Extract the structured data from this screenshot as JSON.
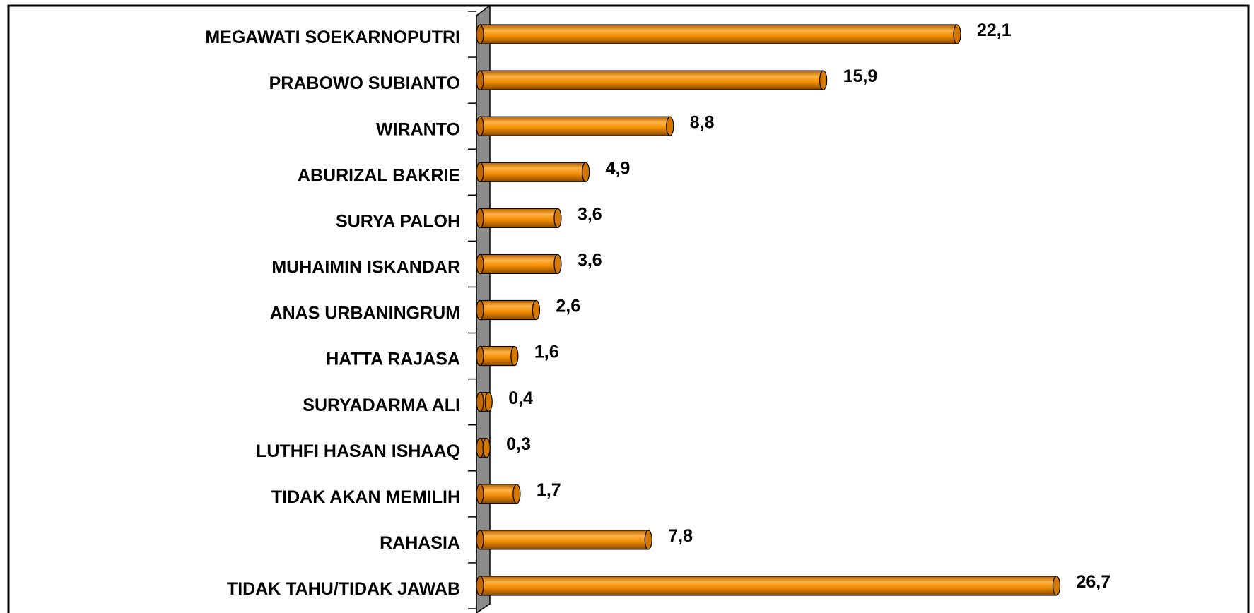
{
  "chart_data": {
    "type": "bar",
    "orientation": "horizontal",
    "categories": [
      "MEGAWATI SOEKARNOPUTRI",
      "PRABOWO SUBIANTO",
      "WIRANTO",
      "ABURIZAL BAKRIE",
      "SURYA PALOH",
      "MUHAIMIN ISKANDAR",
      "ANAS URBANINGRUM",
      "HATTA RAJASA",
      "SURYADARMA ALI",
      "LUTHFI HASAN ISHAAQ",
      "TIDAK AKAN MEMILIH",
      "RAHASIA",
      "TIDAK TAHU/TIDAK JAWAB"
    ],
    "values": [
      22.1,
      15.9,
      8.8,
      4.9,
      3.6,
      3.6,
      2.6,
      1.6,
      0.4,
      0.3,
      1.7,
      7.8,
      26.7
    ],
    "value_labels": [
      "22,1",
      "15,9",
      "8,8",
      "4,9",
      "3,6",
      "3,6",
      "2,6",
      "1,6",
      "0,4",
      "0,3",
      "1,7",
      "7,8",
      "26,7"
    ],
    "color": "#f08c00",
    "xlim": [
      0,
      35
    ]
  }
}
